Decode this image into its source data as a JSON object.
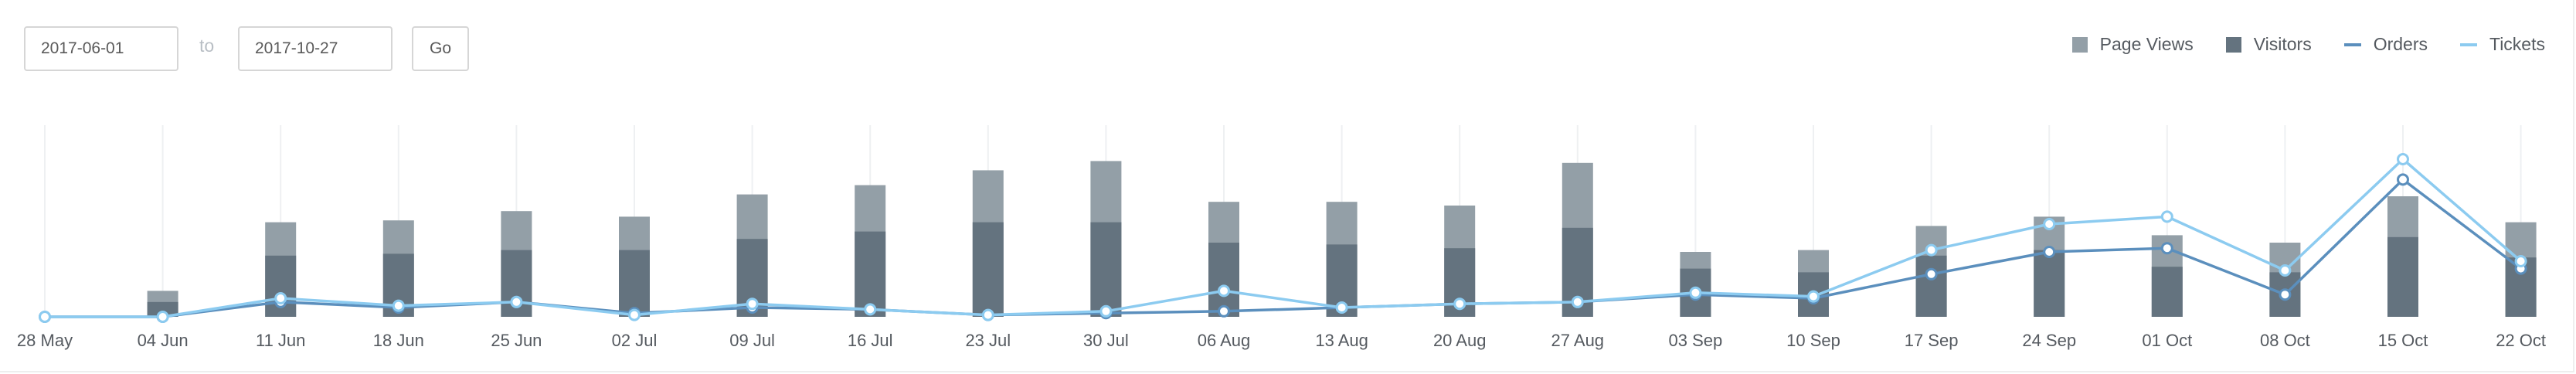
{
  "controls": {
    "start_date": "2017-06-01",
    "to_label": "to",
    "end_date": "2017-10-27",
    "go_label": "Go"
  },
  "legend": [
    {
      "label": "Page Views",
      "kind": "box",
      "color": "#939fa7"
    },
    {
      "label": "Visitors",
      "kind": "box",
      "color": "#64737f"
    },
    {
      "label": "Orders",
      "kind": "line",
      "color": "#5b8fbd"
    },
    {
      "label": "Tickets",
      "kind": "line",
      "color": "#8ccbf0"
    }
  ],
  "chart_data": {
    "type": "bar",
    "categories": [
      "28 May",
      "04 Jun",
      "11 Jun",
      "18 Jun",
      "25 Jun",
      "02 Jul",
      "09 Jul",
      "16 Jul",
      "23 Jul",
      "30 Jul",
      "06 Aug",
      "13 Aug",
      "20 Aug",
      "27 Aug",
      "03 Sep",
      "10 Sep",
      "17 Sep",
      "24 Sep",
      "01 Oct",
      "08 Oct",
      "15 Oct",
      "22 Oct"
    ],
    "ylim": [
      0,
      100
    ],
    "grid": "vertical",
    "legend_position": "top-right",
    "series": [
      {
        "name": "Page Views",
        "type": "bar",
        "color": "#939fa7",
        "values": [
          0,
          14,
          51,
          52,
          57,
          54,
          66,
          71,
          79,
          84,
          62,
          62,
          60,
          83,
          35,
          36,
          49,
          54,
          44,
          40,
          65,
          51
        ]
      },
      {
        "name": "Visitors",
        "type": "bar",
        "color": "#64737f",
        "values": [
          0,
          8,
          33,
          34,
          36,
          36,
          42,
          46,
          51,
          51,
          40,
          39,
          37,
          48,
          26,
          24,
          33,
          36,
          27,
          24,
          43,
          32
        ]
      },
      {
        "name": "Orders",
        "type": "line",
        "color": "#5b8fbd",
        "values": [
          0,
          0,
          8,
          5,
          8,
          2,
          5,
          4,
          1,
          2,
          3,
          5,
          7,
          8,
          12,
          10,
          23,
          35,
          37,
          12,
          74,
          26
        ]
      },
      {
        "name": "Tickets",
        "type": "line",
        "color": "#8ccbf0",
        "values": [
          0,
          0,
          10,
          6,
          8,
          1,
          7,
          4,
          1,
          3,
          14,
          5,
          7,
          8,
          13,
          11,
          36,
          50,
          54,
          25,
          85,
          30
        ]
      }
    ]
  }
}
